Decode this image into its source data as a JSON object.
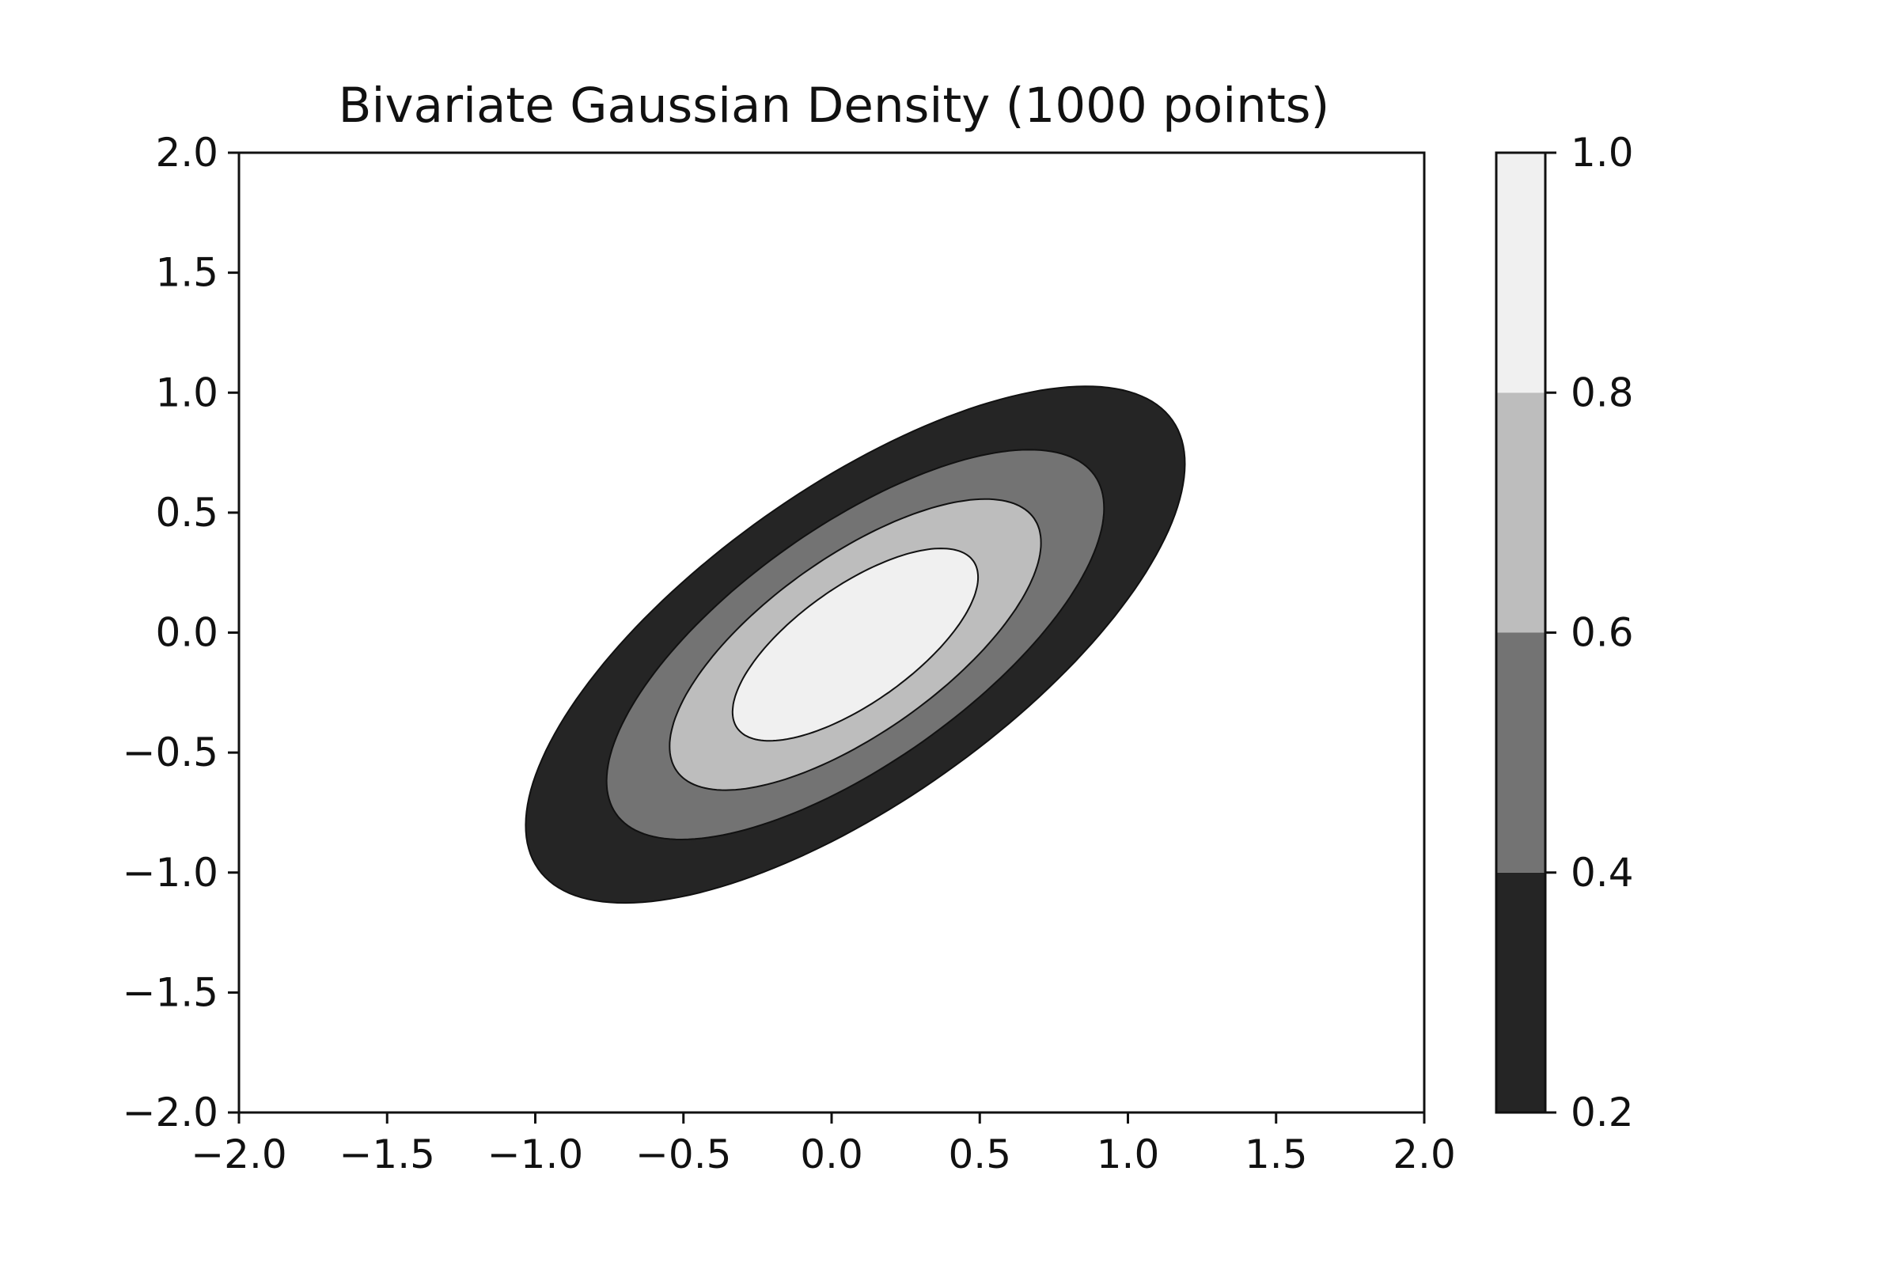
{
  "chart_data": {
    "type": "contourf",
    "title": "Bivariate Gaussian Density (1000 points)",
    "xlabel": "",
    "ylabel": "",
    "xlim": [
      -2.0,
      2.0
    ],
    "ylim": [
      -2.0,
      2.0
    ],
    "x_ticks": [
      "−2.0",
      "−1.5",
      "−1.0",
      "−0.5",
      "0.0",
      "0.5",
      "1.0",
      "1.5",
      "2.0"
    ],
    "y_ticks": [
      "−2.0",
      "−1.5",
      "−1.0",
      "−0.5",
      "0.0",
      "0.5",
      "1.0",
      "1.5",
      "2.0"
    ],
    "grid": false,
    "colormap": "gray",
    "distribution": {
      "mean": [
        0.08,
        -0.05
      ],
      "std": [
        0.62,
        0.6
      ],
      "correlation": 0.7,
      "normalized_peak": 1.0
    },
    "levels": [
      0.2,
      0.4,
      0.6,
      0.8,
      1.0
    ],
    "level_colors": [
      "#252525",
      "#737373",
      "#bdbdbd",
      "#f0f0f0"
    ],
    "colorbar": {
      "location": "right",
      "range": [
        0.2,
        1.0
      ],
      "ticks": [
        "0.2",
        "0.4",
        "0.6",
        "0.8",
        "1.0"
      ]
    }
  }
}
